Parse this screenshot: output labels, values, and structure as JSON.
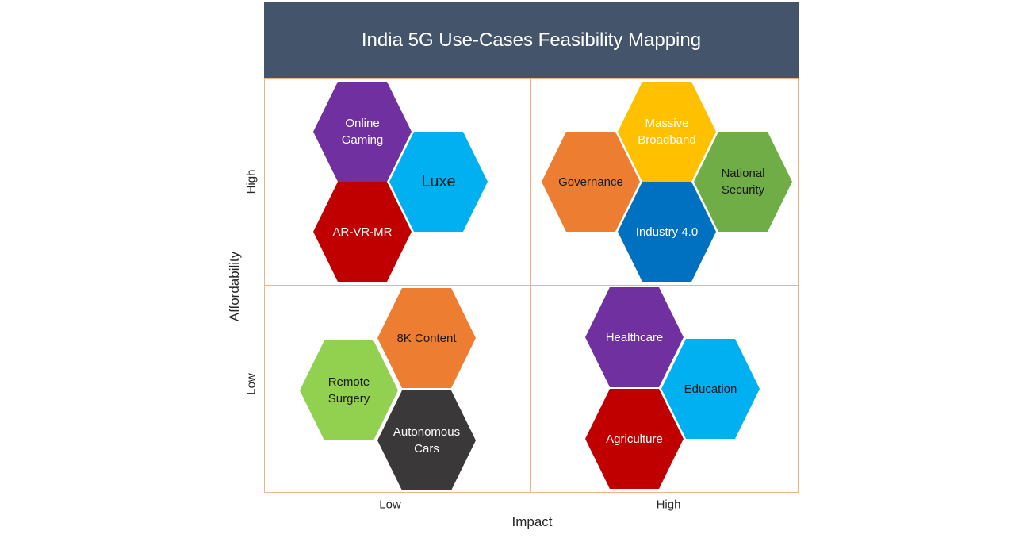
{
  "title": "India 5G Use-Cases Feasibility Mapping",
  "x_axis": {
    "label": "Impact",
    "low": "Low",
    "high": "High"
  },
  "y_axis": {
    "label": "Affordability",
    "low": "Low",
    "high": "High"
  },
  "colors": {
    "header": "#44546a",
    "grid_lines": "#f4b183",
    "purple": "#7030a0",
    "light_blue": "#00b0f0",
    "red": "#c00000",
    "orange": "#ed7d31",
    "yellow": "#ffc000",
    "green": "#70ad47",
    "blue": "#0070c0",
    "dark_gray": "#3a3838",
    "light_green": "#92d050"
  },
  "quadrants": {
    "high_affordability_low_impact": [
      {
        "label": "Online\nGaming",
        "color": "#7030a0",
        "text_color": "#ffffff"
      },
      {
        "label": "Luxe",
        "color": "#00b0f0",
        "text_color": "#1a1a1a"
      },
      {
        "label": "AR-VR-MR",
        "color": "#c00000",
        "text_color": "#ffffff"
      }
    ],
    "high_affordability_high_impact": [
      {
        "label": "Governance",
        "color": "#ed7d31",
        "text_color": "#1a1a1a"
      },
      {
        "label": "Massive\nBroadband",
        "color": "#ffc000",
        "text_color": "#ffffff"
      },
      {
        "label": "National\nSecurity",
        "color": "#70ad47",
        "text_color": "#1a1a1a"
      },
      {
        "label": "Industry 4.0",
        "color": "#0070c0",
        "text_color": "#ffffff"
      }
    ],
    "low_affordability_low_impact": [
      {
        "label": "8K Content",
        "color": "#ed7d31",
        "text_color": "#1a1a1a"
      },
      {
        "label": "Remote\nSurgery",
        "color": "#92d050",
        "text_color": "#1a1a1a"
      },
      {
        "label": "Autonomous\nCars",
        "color": "#3a3838",
        "text_color": "#ffffff"
      }
    ],
    "low_affordability_high_impact": [
      {
        "label": "Healthcare",
        "color": "#7030a0",
        "text_color": "#ffffff"
      },
      {
        "label": "Education",
        "color": "#00b0f0",
        "text_color": "#1a1a1a"
      },
      {
        "label": "Agriculture",
        "color": "#c00000",
        "text_color": "#ffffff"
      }
    ]
  }
}
